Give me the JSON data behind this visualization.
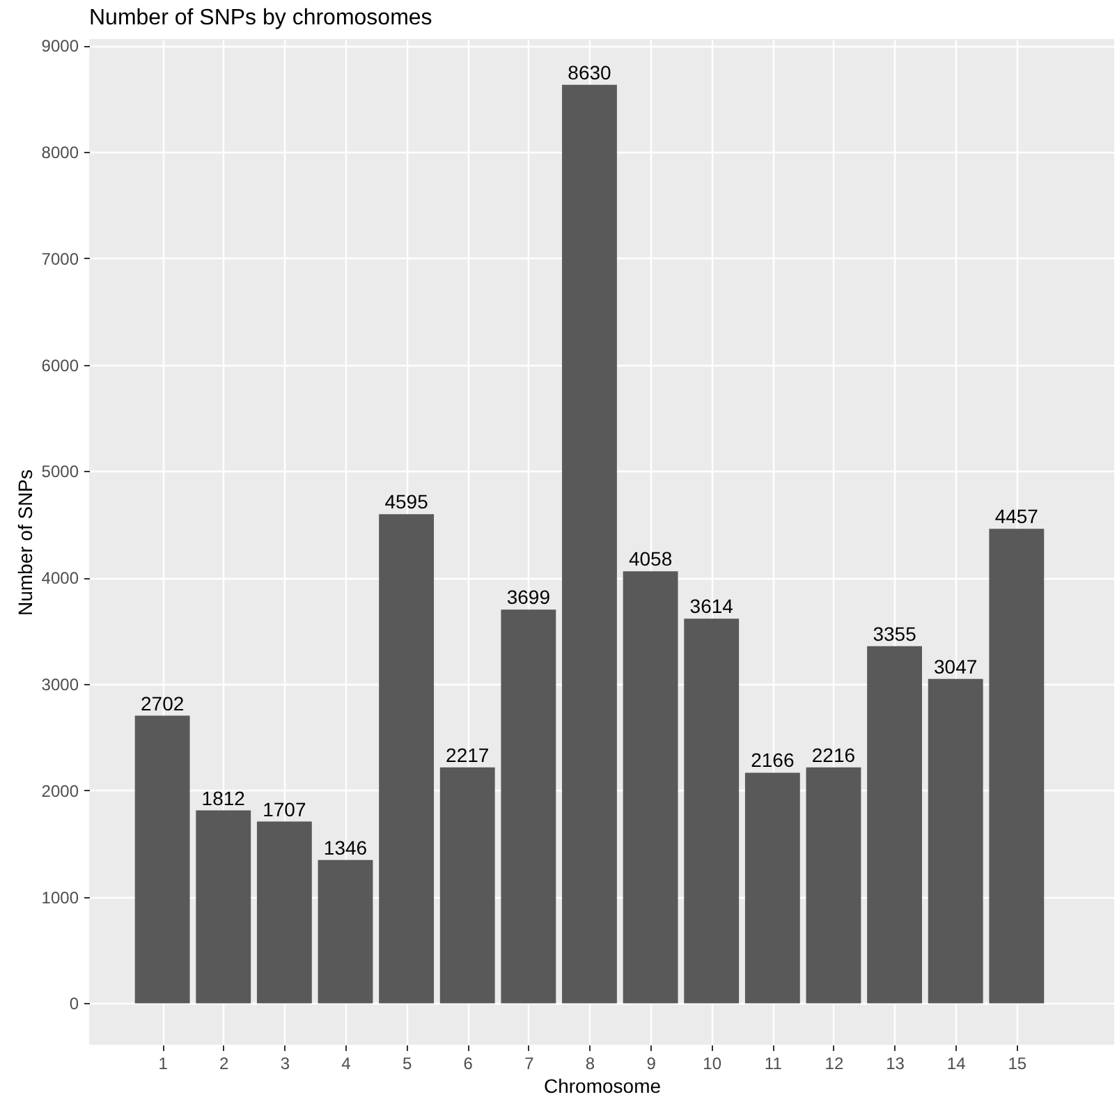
{
  "chart_data": {
    "type": "bar",
    "title": "Number of SNPs by chromosomes",
    "xlabel": "Chromosome",
    "ylabel": "Number of SNPs",
    "x": [
      1,
      2,
      3,
      4,
      5,
      6,
      7,
      8,
      9,
      10,
      11,
      12,
      13,
      14,
      15
    ],
    "values": [
      2702,
      1812,
      1707,
      1346,
      4595,
      2217,
      3699,
      8630,
      4058,
      3614,
      2166,
      2216,
      3355,
      3047,
      4457
    ],
    "color": "#595959",
    "data_labels": true,
    "grid": true,
    "xlim": [
      -0.2,
      16.6
    ],
    "xticks": [
      1,
      2,
      3,
      4,
      5,
      6,
      7,
      8,
      9,
      10,
      11,
      12,
      13,
      14,
      15
    ],
    "ylim": [
      -390,
      9060
    ],
    "yticks": [
      0,
      1000,
      2000,
      3000,
      4000,
      5000,
      6000,
      7000,
      8000,
      9000
    ]
  }
}
